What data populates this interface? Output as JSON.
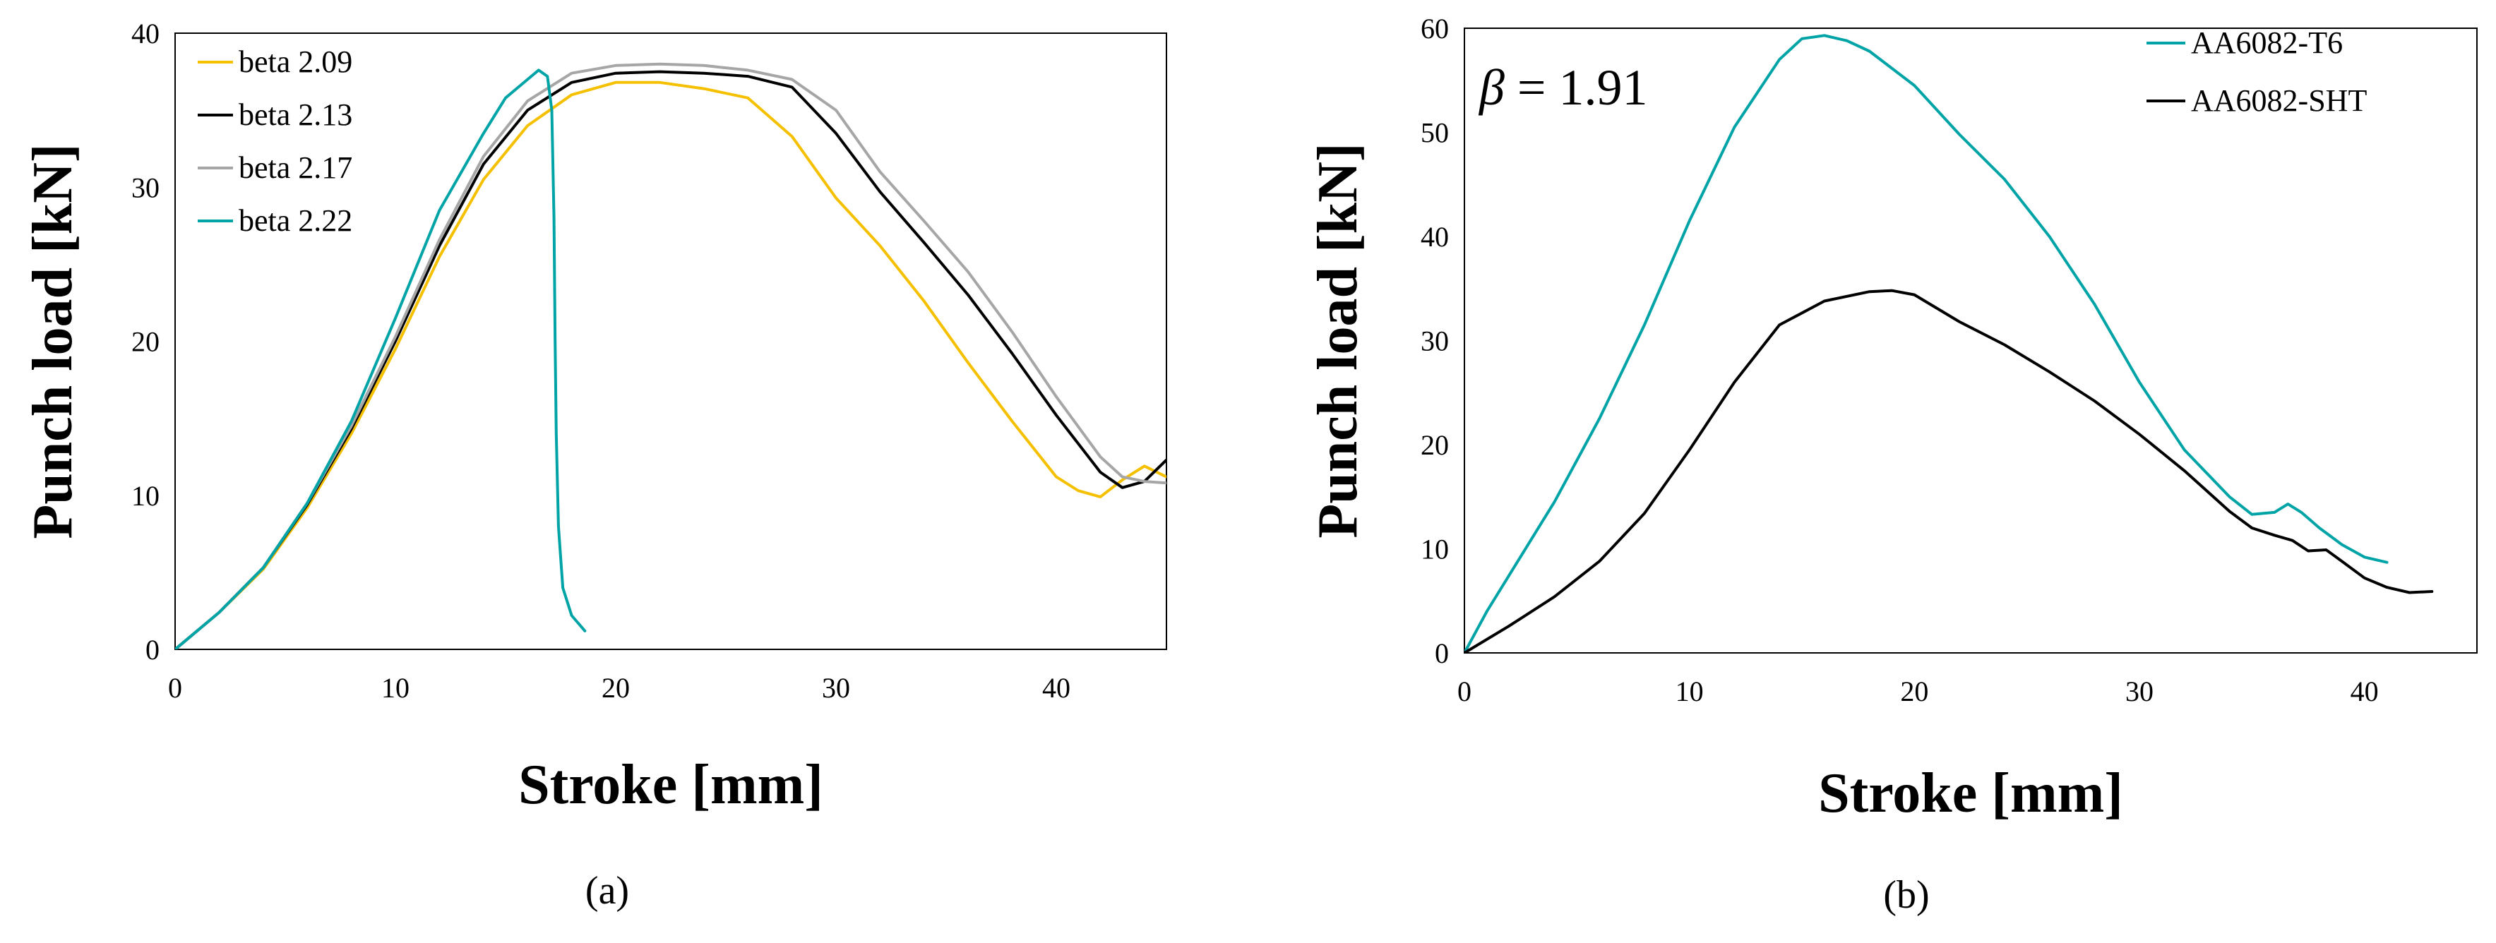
{
  "chart_data": [
    {
      "type": "line",
      "panel_label": "(a)",
      "title": "",
      "xlabel": "Stroke [mm]",
      "ylabel": "Punch load [kN]",
      "xlim": [
        0,
        45
      ],
      "ylim": [
        0,
        40
      ],
      "xticks": [
        "0",
        "10",
        "20",
        "30",
        "40"
      ],
      "yticks": [
        "0",
        "10",
        "20",
        "30",
        "40"
      ],
      "grid": false,
      "legend_position": "top-left",
      "annotation": "",
      "series": [
        {
          "name": "beta 2.09",
          "color": "#F5C000",
          "x": [
            0,
            1,
            2,
            4,
            6,
            8,
            10,
            12,
            14,
            16,
            18,
            20,
            22,
            24,
            26,
            28,
            30,
            32,
            34,
            36,
            38,
            40,
            41,
            42,
            43,
            44,
            45
          ],
          "y": [
            0,
            1.2,
            2.4,
            5.2,
            9.2,
            14,
            19.5,
            25.5,
            30.5,
            34,
            36,
            36.8,
            36.8,
            36.4,
            35.8,
            33.3,
            29.3,
            26.2,
            22.6,
            18.6,
            14.8,
            11.2,
            10.3,
            9.9,
            11,
            11.9,
            11.2
          ]
        },
        {
          "name": "beta 2.13",
          "color": "#000000",
          "x": [
            0,
            1,
            2,
            4,
            6,
            8,
            10,
            12,
            14,
            16,
            18,
            20,
            22,
            24,
            26,
            28,
            30,
            32,
            34,
            36,
            38,
            40,
            42,
            43,
            44,
            45
          ],
          "y": [
            0,
            1.2,
            2.4,
            5.3,
            9.4,
            14.3,
            20,
            26.2,
            31.5,
            35,
            36.8,
            37.4,
            37.5,
            37.4,
            37.2,
            36.5,
            33.5,
            29.7,
            26.4,
            23,
            19.2,
            15.2,
            11.5,
            10.5,
            10.9,
            12.3
          ]
        },
        {
          "name": "beta 2.17",
          "color": "#A6A6A6",
          "x": [
            0,
            1,
            2,
            4,
            6,
            8,
            10,
            12,
            14,
            16,
            18,
            20,
            22,
            24,
            26,
            28,
            30,
            32,
            34,
            36,
            38,
            40,
            42,
            43,
            44,
            45
          ],
          "y": [
            0,
            1.2,
            2.4,
            5.3,
            9.5,
            14.5,
            20.3,
            26.6,
            32,
            35.6,
            37.4,
            37.9,
            38,
            37.9,
            37.6,
            37,
            35,
            31,
            27.8,
            24.5,
            20.6,
            16.4,
            12.5,
            11.2,
            10.9,
            10.8
          ]
        },
        {
          "name": "beta 2.22",
          "color": "#00A3A6",
          "x": [
            0,
            1,
            2,
            4,
            6,
            8,
            10,
            12,
            14,
            15,
            16,
            16.5,
            16.9,
            17.1,
            17.2,
            17.25,
            17.3,
            17.4,
            17.6,
            18,
            18.6
          ],
          "y": [
            0,
            1.2,
            2.4,
            5.3,
            9.5,
            14.8,
            21.5,
            28.5,
            33.5,
            35.8,
            37,
            37.6,
            37.2,
            35,
            28,
            20,
            14,
            8,
            4,
            2.2,
            1.2
          ]
        }
      ]
    },
    {
      "type": "line",
      "panel_label": "(b)",
      "title": "",
      "xlabel": "Stroke [mm]",
      "ylabel": "Punch load [kN]",
      "xlim": [
        0,
        45
      ],
      "ylim": [
        0,
        60
      ],
      "xticks": [
        "0",
        "10",
        "20",
        "30",
        "40"
      ],
      "yticks": [
        "0",
        "10",
        "20",
        "30",
        "40",
        "50",
        "60"
      ],
      "grid": false,
      "legend_position": "top-right",
      "annotation": {
        "symbol": "β",
        "text": " = 1.91"
      },
      "series": [
        {
          "name": "AA6082-T6",
          "color": "#00A3A6",
          "x": [
            0,
            1,
            2,
            4,
            6,
            8,
            10,
            12,
            14,
            15,
            16,
            17,
            18,
            20,
            22,
            24,
            26,
            28,
            30,
            32,
            34,
            35,
            36,
            36.6,
            37.2,
            38,
            39,
            40,
            41
          ],
          "y": [
            0,
            4,
            7.5,
            14.5,
            22.5,
            31.5,
            41.5,
            50.5,
            57,
            59,
            59.3,
            58.8,
            57.8,
            54.5,
            49.8,
            45.5,
            40,
            33.5,
            26,
            19.5,
            15,
            13.3,
            13.5,
            14.3,
            13.5,
            12,
            10.4,
            9.2,
            8.7
          ]
        },
        {
          "name": "AA6082-SHT",
          "color": "#000000",
          "x": [
            0,
            2,
            4,
            6,
            8,
            10,
            12,
            14,
            16,
            18,
            19,
            20,
            22,
            24,
            26,
            28,
            30,
            32,
            34,
            35,
            36,
            36.8,
            37.5,
            38.3,
            39,
            40,
            41,
            42,
            43
          ],
          "y": [
            0,
            2.6,
            5.4,
            8.8,
            13.4,
            19.5,
            26,
            31.5,
            33.8,
            34.7,
            34.8,
            34.4,
            31.8,
            29.6,
            27,
            24.2,
            21,
            17.5,
            13.6,
            12,
            11.3,
            10.8,
            9.8,
            9.9,
            8.8,
            7.2,
            6.3,
            5.8,
            5.9
          ]
        }
      ]
    }
  ]
}
